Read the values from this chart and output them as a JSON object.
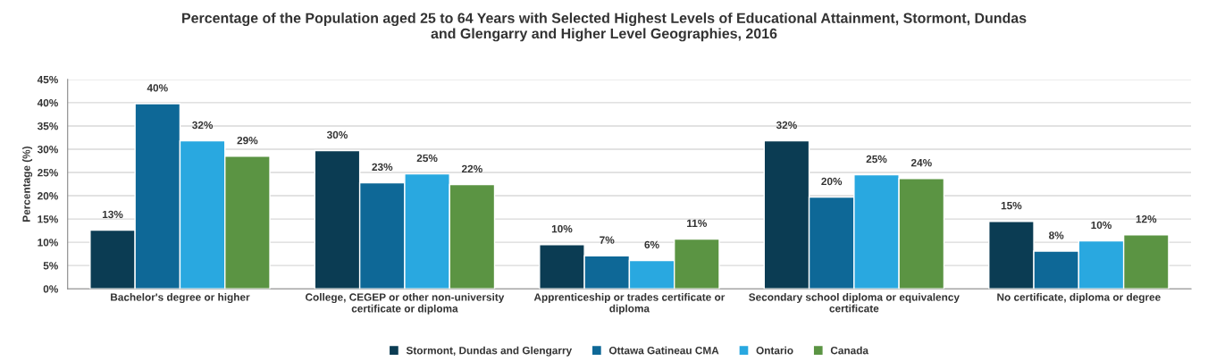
{
  "chart_data": {
    "type": "bar",
    "title": "Percentage of the Population aged 25 to 64 Years with Selected Highest Levels of Educational Attainment, Stormont, Dundas\nand Glengarry and Higher Level Geographies, 2016",
    "ylabel": "Percentage (%)",
    "categories": [
      "Bachelor's degree or higher",
      "College, CEGEP or other non-university\ncertificate or diploma",
      "Apprenticeship or trades certificate or\ndiploma",
      "Secondary school diploma or equivalency\ncertificate",
      "No certificate, diploma or degree"
    ],
    "series": [
      {
        "name": "Stormont, Dundas and Glengarry",
        "color": "#0b3c53",
        "values": [
          12.6,
          29.7,
          9.5,
          31.8,
          14.5
        ],
        "value_labels": [
          "13%",
          "30%",
          "10%",
          "32%",
          "15%"
        ]
      },
      {
        "name": "Ottawa Gatineau CMA",
        "color": "#0e6897",
        "values": [
          39.8,
          22.8,
          7.1,
          19.7,
          8.1
        ],
        "value_labels": [
          "40%",
          "23%",
          "7%",
          "20%",
          "8%"
        ]
      },
      {
        "name": "Ontario",
        "color": "#29a8e0",
        "values": [
          31.8,
          24.7,
          6.1,
          24.5,
          10.3
        ],
        "value_labels": [
          "32%",
          "25%",
          "6%",
          "25%",
          "10%"
        ]
      },
      {
        "name": "Canada",
        "color": "#5b9443",
        "values": [
          28.5,
          22.4,
          10.7,
          23.7,
          11.6
        ],
        "value_labels": [
          "29%",
          "22%",
          "11%",
          "24%",
          "12%"
        ]
      }
    ],
    "ylim": [
      0,
      45
    ],
    "yticks": [
      {
        "value": 0,
        "label": "0%"
      },
      {
        "value": 5,
        "label": "5%"
      },
      {
        "value": 10,
        "label": "10%"
      },
      {
        "value": 15,
        "label": "15%"
      },
      {
        "value": 20,
        "label": "20%"
      },
      {
        "value": 25,
        "label": "25%"
      },
      {
        "value": 30,
        "label": "30%"
      },
      {
        "value": 35,
        "label": "35%"
      },
      {
        "value": 40,
        "label": "40%"
      },
      {
        "value": 45,
        "label": "45%"
      }
    ],
    "grid": "y",
    "legend": "bottom"
  }
}
